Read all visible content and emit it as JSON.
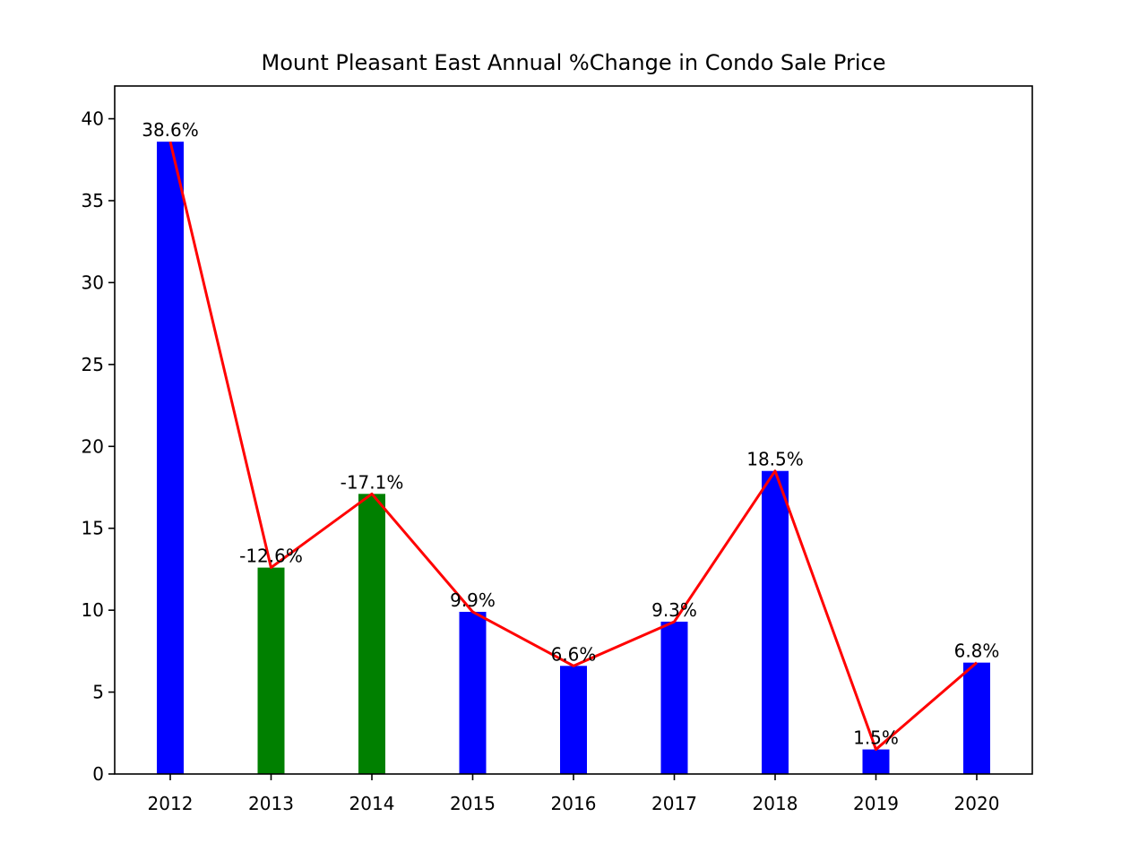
{
  "chart_data": {
    "type": "bar",
    "title": "Mount Pleasant East Annual %Change in Condo Sale Price",
    "xlabel": "",
    "ylabel": "",
    "categories": [
      "2012",
      "2013",
      "2014",
      "2015",
      "2016",
      "2017",
      "2018",
      "2019",
      "2020"
    ],
    "values": [
      38.6,
      12.6,
      17.1,
      9.9,
      6.6,
      9.3,
      18.5,
      1.5,
      6.8
    ],
    "data_labels": [
      "38.6%",
      "-12.6%",
      "-17.1%",
      "9.9%",
      "6.6%",
      "9.3%",
      "18.5%",
      "1.5%",
      "6.8%"
    ],
    "bar_colors": [
      "#0000ff",
      "#008000",
      "#008000",
      "#0000ff",
      "#0000ff",
      "#0000ff",
      "#0000ff",
      "#0000ff",
      "#0000ff"
    ],
    "line_color": "#ff0000",
    "ylim": [
      0,
      42
    ],
    "yticks": [
      0,
      5,
      10,
      15,
      20,
      25,
      30,
      35,
      40
    ],
    "grid": false,
    "legend": "none"
  }
}
